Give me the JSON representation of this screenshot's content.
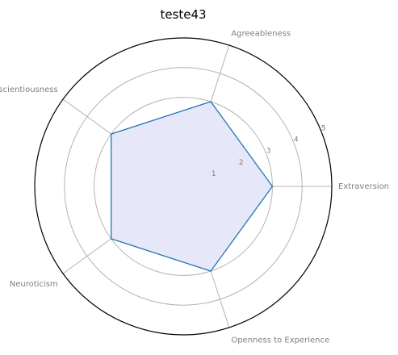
{
  "chart_data": {
    "type": "radar",
    "title": "teste43",
    "categories": [
      "Extraversion",
      "Agreeableness",
      "Conscientiousness",
      "Neuroticism",
      "Openness to Experience"
    ],
    "series": [
      {
        "values": [
          3,
          3,
          3,
          3,
          3
        ]
      }
    ],
    "rlim": [
      0,
      5
    ],
    "r_ticks": [
      "1",
      "2",
      "3",
      "4",
      "5"
    ],
    "grid": true,
    "colors": {
      "line": "#1f77b4",
      "fill": "#e6e6fa",
      "frame": "#000000",
      "grid": "#b3b3b3"
    }
  }
}
